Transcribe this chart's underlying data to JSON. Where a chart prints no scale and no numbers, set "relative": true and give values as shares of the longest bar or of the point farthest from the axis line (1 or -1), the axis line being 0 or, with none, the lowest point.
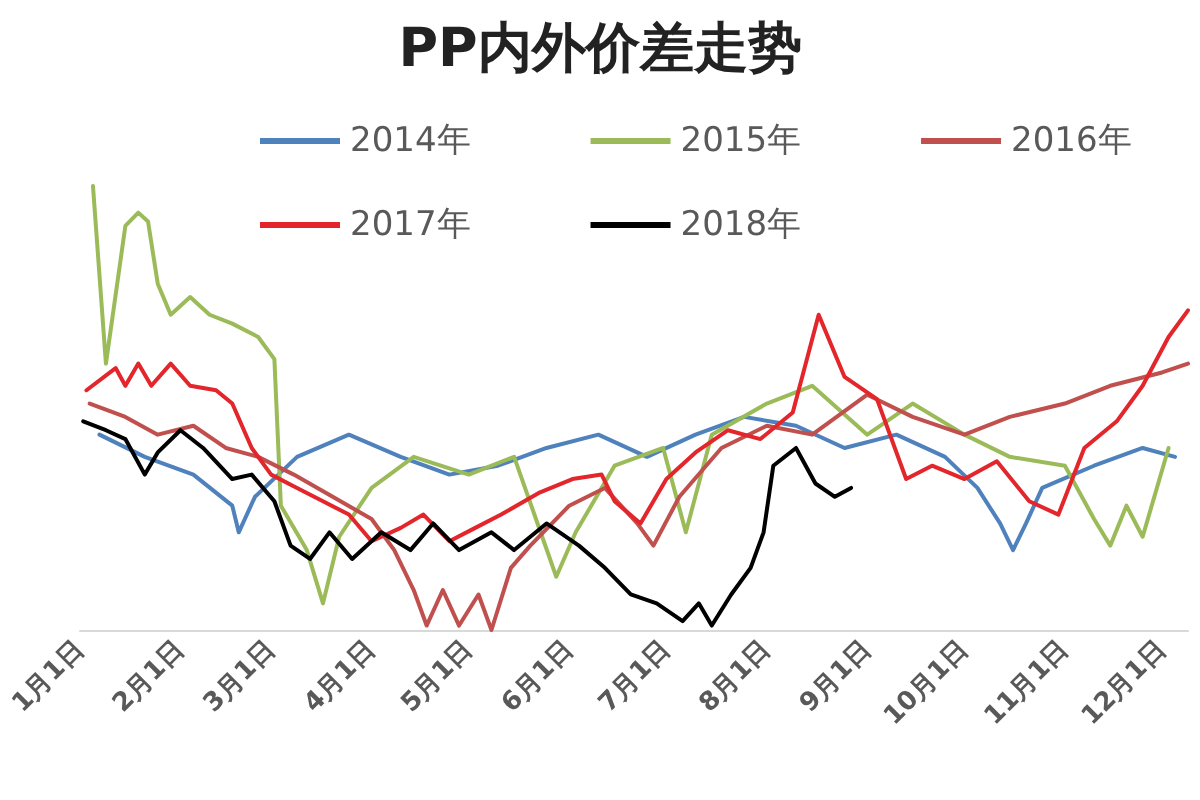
{
  "chart_data": {
    "type": "line",
    "title": "PP内外价差走势",
    "relative": true,
    "legend": "top",
    "marker": "none",
    "xlim": [
      "--01-01",
      "--12-09"
    ],
    "xticks": [
      {
        "value": "--01-01",
        "label": "1月1日"
      },
      {
        "value": "--02-01",
        "label": "2月1日"
      },
      {
        "value": "--03-01",
        "label": "3月1日"
      },
      {
        "value": "--04-01",
        "label": "4月1日"
      },
      {
        "value": "--05-01",
        "label": "5月1日"
      },
      {
        "value": "--06-01",
        "label": "6月1日"
      },
      {
        "value": "--07-01",
        "label": "7月1日"
      },
      {
        "value": "--08-01",
        "label": "8月1日"
      },
      {
        "value": "--09-01",
        "label": "9月1日"
      },
      {
        "value": "--10-01",
        "label": "10月1日"
      },
      {
        "value": "--11-01",
        "label": "11月1日"
      },
      {
        "value": "--12-01",
        "label": "12月1日"
      }
    ],
    "series": [
      {
        "name": "2014年",
        "color": "#4f81bd",
        "x": [
          "--01-07",
          "--01-21",
          "--02-05",
          "--02-17",
          "--02-19",
          "--02-24",
          "--03-09",
          "--03-25",
          "--04-10",
          "--04-25",
          "--05-10",
          "--05-25",
          "--06-10",
          "--06-25",
          "--07-10",
          "--07-25",
          "--08-10",
          "--08-25",
          "--09-10",
          "--09-25",
          "--10-05",
          "--10-12",
          "--10-16",
          "--10-20",
          "--10-25",
          "--11-10",
          "--11-25",
          "--12-05"
        ],
        "values": [
          0.44,
          0.39,
          0.35,
          0.28,
          0.22,
          0.3,
          0.39,
          0.44,
          0.39,
          0.35,
          0.37,
          0.41,
          0.44,
          0.39,
          0.44,
          0.48,
          0.46,
          0.41,
          0.44,
          0.39,
          0.32,
          0.24,
          0.18,
          0.24,
          0.32,
          0.37,
          0.41,
          0.39
        ]
      },
      {
        "name": "2015年",
        "color": "#9bbb59",
        "x": [
          "--01-05",
          "--01-09",
          "--01-15",
          "--01-19",
          "--01-22",
          "--01-25",
          "--01-29",
          "--02-04",
          "--02-10",
          "--02-17",
          "--02-25",
          "--03-02",
          "--03-04",
          "--03-12",
          "--03-17",
          "--03-22",
          "--04-01",
          "--04-14",
          "--05-01",
          "--05-15",
          "--05-28",
          "--06-03",
          "--06-15",
          "--06-30",
          "--07-07",
          "--07-15",
          "--08-01",
          "--08-15",
          "--09-01",
          "--09-15",
          "--10-01",
          "--10-15",
          "--11-01",
          "--11-10",
          "--11-15",
          "--11-20",
          "--11-25",
          "--12-03"
        ],
        "values": [
          1.0,
          0.6,
          0.91,
          0.94,
          0.92,
          0.78,
          0.71,
          0.75,
          0.71,
          0.69,
          0.66,
          0.61,
          0.28,
          0.18,
          0.06,
          0.21,
          0.32,
          0.39,
          0.35,
          0.39,
          0.12,
          0.22,
          0.37,
          0.41,
          0.22,
          0.44,
          0.51,
          0.55,
          0.44,
          0.51,
          0.44,
          0.39,
          0.37,
          0.25,
          0.19,
          0.28,
          0.21,
          0.41
        ]
      },
      {
        "name": "2016年",
        "color": "#c0504d",
        "x": [
          "--01-04",
          "--01-15",
          "--01-25",
          "--02-05",
          "--02-15",
          "--02-25",
          "--03-08",
          "--03-20",
          "--04-01",
          "--04-08",
          "--04-14",
          "--04-18",
          "--04-23",
          "--04-28",
          "--05-04",
          "--05-08",
          "--05-14",
          "--05-20",
          "--06-01",
          "--06-12",
          "--06-22",
          "--06-27",
          "--07-05",
          "--07-18",
          "--08-01",
          "--08-15",
          "--09-01",
          "--09-15",
          "--10-01",
          "--10-15",
          "--11-01",
          "--11-15",
          "--12-01",
          "--12-09"
        ],
        "values": [
          0.51,
          0.48,
          0.44,
          0.46,
          0.41,
          0.39,
          0.35,
          0.3,
          0.25,
          0.18,
          0.09,
          0.01,
          0.09,
          0.01,
          0.08,
          0.0,
          0.14,
          0.19,
          0.28,
          0.32,
          0.24,
          0.19,
          0.3,
          0.41,
          0.46,
          0.44,
          0.53,
          0.48,
          0.44,
          0.48,
          0.51,
          0.55,
          0.58,
          0.6
        ]
      },
      {
        "name": "2017年",
        "color": "#e2262b",
        "x": [
          "--01-03",
          "--01-12",
          "--01-15",
          "--01-19",
          "--01-23",
          "--01-29",
          "--02-04",
          "--02-12",
          "--02-17",
          "--02-23",
          "--03-01",
          "--03-09",
          "--03-17",
          "--03-25",
          "--04-01",
          "--04-10",
          "--04-17",
          "--04-25",
          "--05-03",
          "--05-11",
          "--05-23",
          "--06-02",
          "--06-11",
          "--06-15",
          "--06-23",
          "--07-01",
          "--07-10",
          "--07-20",
          "--07-30",
          "--08-09",
          "--08-17",
          "--08-25",
          "--09-04",
          "--09-13",
          "--09-21",
          "--10-01",
          "--10-11",
          "--10-21",
          "--10-30",
          "--11-07",
          "--11-17",
          "--11-25",
          "--12-03",
          "--12-09"
        ],
        "values": [
          0.54,
          0.59,
          0.55,
          0.6,
          0.55,
          0.6,
          0.55,
          0.54,
          0.51,
          0.41,
          0.35,
          0.32,
          0.29,
          0.26,
          0.2,
          0.23,
          0.26,
          0.2,
          0.23,
          0.26,
          0.31,
          0.34,
          0.35,
          0.29,
          0.24,
          0.34,
          0.4,
          0.45,
          0.43,
          0.49,
          0.71,
          0.57,
          0.52,
          0.34,
          0.37,
          0.34,
          0.38,
          0.29,
          0.26,
          0.41,
          0.47,
          0.55,
          0.66,
          0.72
        ]
      },
      {
        "name": "2018年",
        "color": "#000000",
        "x": [
          "--01-02",
          "--01-09",
          "--01-15",
          "--01-21",
          "--01-25",
          "--02-01",
          "--02-08",
          "--02-17",
          "--02-23",
          "--03-02",
          "--03-07",
          "--03-13",
          "--03-19",
          "--03-26",
          "--04-04",
          "--04-13",
          "--04-20",
          "--04-28",
          "--05-08",
          "--05-15",
          "--05-25",
          "--06-04",
          "--06-12",
          "--06-20",
          "--06-28",
          "--07-06",
          "--07-11",
          "--07-15",
          "--07-21",
          "--07-27",
          "--07-31",
          "--08-03",
          "--08-10",
          "--08-16",
          "--08-22",
          "--08-27"
        ],
        "values": [
          0.47,
          0.45,
          0.43,
          0.35,
          0.4,
          0.45,
          0.41,
          0.34,
          0.35,
          0.29,
          0.19,
          0.16,
          0.22,
          0.16,
          0.22,
          0.18,
          0.24,
          0.18,
          0.22,
          0.18,
          0.24,
          0.19,
          0.14,
          0.08,
          0.06,
          0.02,
          0.06,
          0.01,
          0.08,
          0.14,
          0.22,
          0.37,
          0.41,
          0.33,
          0.3,
          0.32
        ]
      }
    ]
  }
}
